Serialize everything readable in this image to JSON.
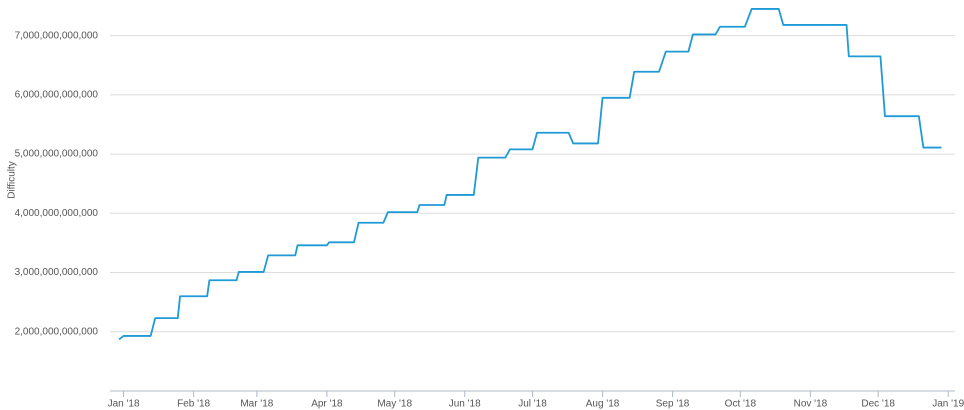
{
  "chart_data": {
    "type": "line",
    "y_label": "Difficulty",
    "x": [
      -2,
      0,
      12,
      14,
      24,
      25,
      37,
      38,
      50,
      51,
      62,
      64,
      76,
      77,
      90,
      91,
      102,
      104,
      115,
      117,
      130,
      131,
      142,
      143,
      155,
      157,
      169,
      171,
      181,
      183,
      197,
      199,
      210,
      212,
      224,
      226,
      237,
      240,
      250,
      252,
      262,
      264,
      275,
      278,
      290,
      292,
      320,
      321,
      335,
      337,
      352,
      354,
      362
    ],
    "values": [
      1870000000000,
      1930000000000,
      1930000000000,
      2230000000000,
      2230000000000,
      2600000000000,
      2600000000000,
      2870000000000,
      2870000000000,
      3010000000000,
      3010000000000,
      3290000000000,
      3290000000000,
      3460000000000,
      3460000000000,
      3510000000000,
      3510000000000,
      3840000000000,
      3840000000000,
      4020000000000,
      4020000000000,
      4140000000000,
      4140000000000,
      4310000000000,
      4310000000000,
      4940000000000,
      4940000000000,
      5080000000000,
      5080000000000,
      5360000000000,
      5360000000000,
      5180000000000,
      5180000000000,
      5950000000000,
      5950000000000,
      6390000000000,
      6390000000000,
      6730000000000,
      6730000000000,
      7020000000000,
      7020000000000,
      7150000000000,
      7150000000000,
      7450000000000,
      7450000000000,
      7180000000000,
      7180000000000,
      6650000000000,
      6650000000000,
      5640000000000,
      5640000000000,
      5110000000000,
      5110000000000
    ],
    "color": "#1f9ad6",
    "xlim": [
      -6,
      368
    ],
    "ylim": [
      1000000000000,
      7500000000000
    ],
    "xticks": [
      {
        "value": 0,
        "label": "Jan '18"
      },
      {
        "value": 31,
        "label": "Feb '18"
      },
      {
        "value": 59,
        "label": "Mar '18"
      },
      {
        "value": 90,
        "label": "Apr '18"
      },
      {
        "value": 120,
        "label": "May '18"
      },
      {
        "value": 151,
        "label": "Jun '18"
      },
      {
        "value": 181,
        "label": "Jul '18"
      },
      {
        "value": 212,
        "label": "Aug '18"
      },
      {
        "value": 243,
        "label": "Sep '18"
      },
      {
        "value": 273,
        "label": "Oct '18"
      },
      {
        "value": 304,
        "label": "Nov '18"
      },
      {
        "value": 334,
        "label": "Dec '18"
      },
      {
        "value": 365,
        "label": "Jan '19"
      }
    ],
    "yticks": [
      {
        "value": 2000000000000,
        "label": "2,000,000,000,000"
      },
      {
        "value": 3000000000000,
        "label": "3,000,000,000,000"
      },
      {
        "value": 4000000000000,
        "label": "4,000,000,000,000"
      },
      {
        "value": 5000000000000,
        "label": "5,000,000,000,000"
      },
      {
        "value": 6000000000000,
        "label": "6,000,000,000,000"
      },
      {
        "value": 7000000000000,
        "label": "7,000,000,000,000"
      }
    ],
    "grid": true
  }
}
